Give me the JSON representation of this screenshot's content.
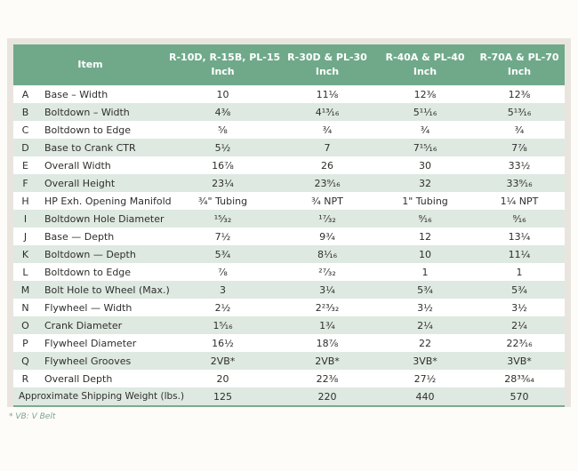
{
  "table": {
    "header": {
      "item_label": "Item",
      "columns": [
        {
          "model": "R-10D, R-15B, PL-15",
          "unit": "Inch"
        },
        {
          "model": "R-30D & PL-30",
          "unit": "Inch"
        },
        {
          "model": "R-40A & PL-40",
          "unit": "Inch"
        },
        {
          "model": "R-70A & PL-70",
          "unit": "Inch"
        }
      ]
    },
    "rows": [
      {
        "letter": "A",
        "item": "Base – Width",
        "values": [
          "10",
          "11⅛",
          "12⅜",
          "12⅜"
        ]
      },
      {
        "letter": "B",
        "item": "Boltdown – Width",
        "values": [
          "4⅜",
          "4¹³⁄₁₆",
          "5¹¹⁄₁₆",
          "5¹³⁄₁₆"
        ]
      },
      {
        "letter": "C",
        "item": "Boltdown to Edge",
        "values": [
          "⅝",
          "¾",
          "¾",
          "¾"
        ]
      },
      {
        "letter": "D",
        "item": "Base to Crank CTR",
        "values": [
          "5½",
          "7",
          "7¹⁵⁄₁₆",
          "7⅞"
        ]
      },
      {
        "letter": "E",
        "item": "Overall Width",
        "values": [
          "16⅞",
          "26",
          "30",
          "33½"
        ]
      },
      {
        "letter": "F",
        "item": "Overall Height",
        "values": [
          "23¼",
          "23⁹⁄₁₆",
          "32",
          "33⁹⁄₁₆"
        ]
      },
      {
        "letter": "H",
        "item": "HP Exh. Opening Manifold",
        "values": [
          "¾\" Tubing",
          "¾ NPT",
          "1\" Tubing",
          "1¼ NPT"
        ]
      },
      {
        "letter": "I",
        "item": "Boltdown Hole Diameter",
        "values": [
          "¹⁵⁄₃₂",
          "¹⁷⁄₃₂",
          "⁹⁄₁₆",
          "⁹⁄₁₆"
        ]
      },
      {
        "letter": "J",
        "item": "Base — Depth",
        "values": [
          "7½",
          "9¾",
          "12",
          "13¼"
        ]
      },
      {
        "letter": "K",
        "item": "Boltdown — Depth",
        "values": [
          "5¾",
          "8¹⁄₁₆",
          "10",
          "11¼"
        ]
      },
      {
        "letter": "L",
        "item": "Boltdown to Edge",
        "values": [
          "⅞",
          "²⁷⁄₃₂",
          "1",
          "1"
        ]
      },
      {
        "letter": "M",
        "item": "Bolt Hole to Wheel (Max.)",
        "values": [
          "3",
          "3¼",
          "5¾",
          "5¾"
        ]
      },
      {
        "letter": "N",
        "item": "Flywheel — Width",
        "values": [
          "2½",
          "2²³⁄₃₂",
          "3½",
          "3½"
        ]
      },
      {
        "letter": "O",
        "item": "Crank Diameter",
        "values": [
          "1⁵⁄₁₆",
          "1¾",
          "2¼",
          "2¼"
        ]
      },
      {
        "letter": "P",
        "item": "Flywheel Diameter",
        "values": [
          "16½",
          "18⅞",
          "22",
          "22³⁄₁₆"
        ]
      },
      {
        "letter": "Q",
        "item": "Flywheel Grooves",
        "values": [
          "2VB*",
          "2VB*",
          "3VB*",
          "3VB*"
        ]
      },
      {
        "letter": "R",
        "item": "Overall Depth",
        "values": [
          "20",
          "22⅜",
          "27½",
          "28³³⁄₆₄"
        ]
      },
      {
        "letter": "",
        "item": "Approximate Shipping Weight (lbs.)",
        "values": [
          "125",
          "220",
          "440",
          "570"
        ]
      }
    ],
    "footnote": "* VB: V Belt"
  },
  "colors": {
    "header_green": "#6fa98a",
    "stripe_green": "#dee9e1",
    "frame_beige": "#e9e5de",
    "bottom_border_green": "#7bab90",
    "footnote_green": "#7f9f8e",
    "text": "#2f2e2c",
    "page_background": "#fdfcf9"
  }
}
